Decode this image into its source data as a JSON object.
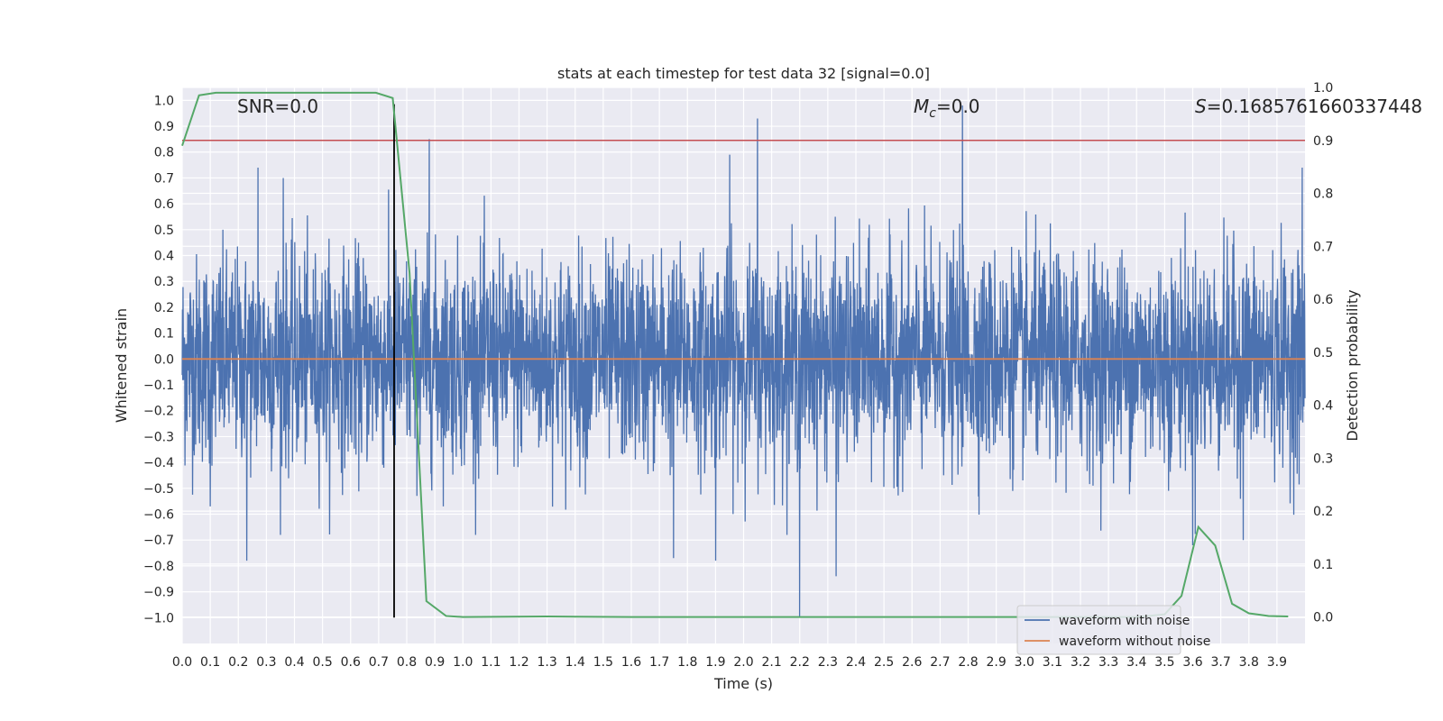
{
  "chart_data": {
    "type": "line",
    "title": "stats at each timestep for test data 32 [signal=0.0]",
    "xlabel": "Time (s)",
    "ylabel": "Whitened strain",
    "ylabel_right": "Detection probability",
    "xlim": [
      0.0,
      4.0
    ],
    "ylim": [
      -1.1,
      1.05
    ],
    "ylim_right": [
      -0.05,
      1.0
    ],
    "x_ticks": [
      "0.0",
      "0.1",
      "0.2",
      "0.3",
      "0.4",
      "0.5",
      "0.6",
      "0.7",
      "0.8",
      "0.9",
      "1.0",
      "1.1",
      "1.2",
      "1.3",
      "1.4",
      "1.5",
      "1.6",
      "1.7",
      "1.8",
      "1.9",
      "2.0",
      "2.1",
      "2.2",
      "2.3",
      "2.4",
      "2.5",
      "2.6",
      "2.7",
      "2.8",
      "2.9",
      "3.0",
      "3.1",
      "3.2",
      "3.3",
      "3.4",
      "3.5",
      "3.6",
      "3.7",
      "3.8",
      "3.9"
    ],
    "y_ticks": [
      "1.0",
      "0.9",
      "0.8",
      "0.7",
      "0.6",
      "0.5",
      "0.4",
      "0.3",
      "0.2",
      "0.1",
      "0.0",
      "−0.1",
      "−0.2",
      "−0.3",
      "−0.4",
      "−0.5",
      "−0.6",
      "−0.7",
      "−0.8",
      "−0.9",
      "−1.0"
    ],
    "y_ticks_right": [
      "1.0",
      "0.9",
      "0.8",
      "0.7",
      "0.6",
      "0.5",
      "0.4",
      "0.3",
      "0.2",
      "0.1",
      "0.0"
    ],
    "annotations": {
      "snr": "SNR=0.0",
      "mc": "Mс=0.0",
      "mc_base": "M",
      "mc_sub": "c",
      "mc_value": "=0.0",
      "s_base": "S",
      "s_value": "=0.1685761660337448"
    },
    "marker_time": 0.755,
    "threshold_probability": 0.9,
    "noisy_waveform": {
      "name": "waveform with noise",
      "color": "#4c72b0",
      "samples": 4000,
      "amplitude_typical": 0.5,
      "spikes": [
        {
          "x": 0.27,
          "y": 0.74
        },
        {
          "x": 0.23,
          "y": -0.78
        },
        {
          "x": 0.88,
          "y": 0.85
        },
        {
          "x": 1.95,
          "y": 0.79
        },
        {
          "x": 2.05,
          "y": 0.93
        },
        {
          "x": 2.78,
          "y": 0.98
        },
        {
          "x": 2.2,
          "y": -1.0
        },
        {
          "x": 2.33,
          "y": -0.84
        },
        {
          "x": 1.75,
          "y": -0.77
        },
        {
          "x": 1.9,
          "y": -0.78
        },
        {
          "x": 3.6,
          "y": -0.72
        },
        {
          "x": 3.78,
          "y": -0.7
        },
        {
          "x": 3.99,
          "y": 0.74
        },
        {
          "x": 0.36,
          "y": 0.7
        },
        {
          "x": 0.1,
          "y": -0.57
        }
      ]
    },
    "clean_waveform": {
      "name": "waveform without noise",
      "color": "#dd8452",
      "value": 0.0
    },
    "probability": {
      "name": "detection probability",
      "color": "#55a868",
      "x": [
        0.0,
        0.06,
        0.12,
        0.2,
        0.3,
        0.4,
        0.5,
        0.6,
        0.69,
        0.75,
        0.81,
        0.87,
        0.94,
        1.0,
        1.3,
        1.6,
        2.0,
        2.5,
        3.0,
        3.4,
        3.5,
        3.56,
        3.62,
        3.68,
        3.74,
        3.8,
        3.87,
        3.94
      ],
      "y": [
        0.89,
        0.985,
        0.99,
        0.99,
        0.99,
        0.99,
        0.99,
        0.99,
        0.99,
        0.98,
        0.65,
        0.03,
        0.002,
        0.0,
        0.001,
        0.0,
        0.0,
        0.0,
        0.0,
        0.0,
        0.005,
        0.04,
        0.17,
        0.135,
        0.025,
        0.007,
        0.002,
        0.001
      ]
    },
    "threshold_color": "#c44e52",
    "marker_color": "#000000",
    "legend": {
      "position": "lower-right",
      "entries": [
        {
          "label": "waveform with noise",
          "color": "#4c72b0"
        },
        {
          "label": "waveform without noise",
          "color": "#dd8452"
        }
      ]
    },
    "background_color": "#eaeaf2",
    "grid": true
  }
}
